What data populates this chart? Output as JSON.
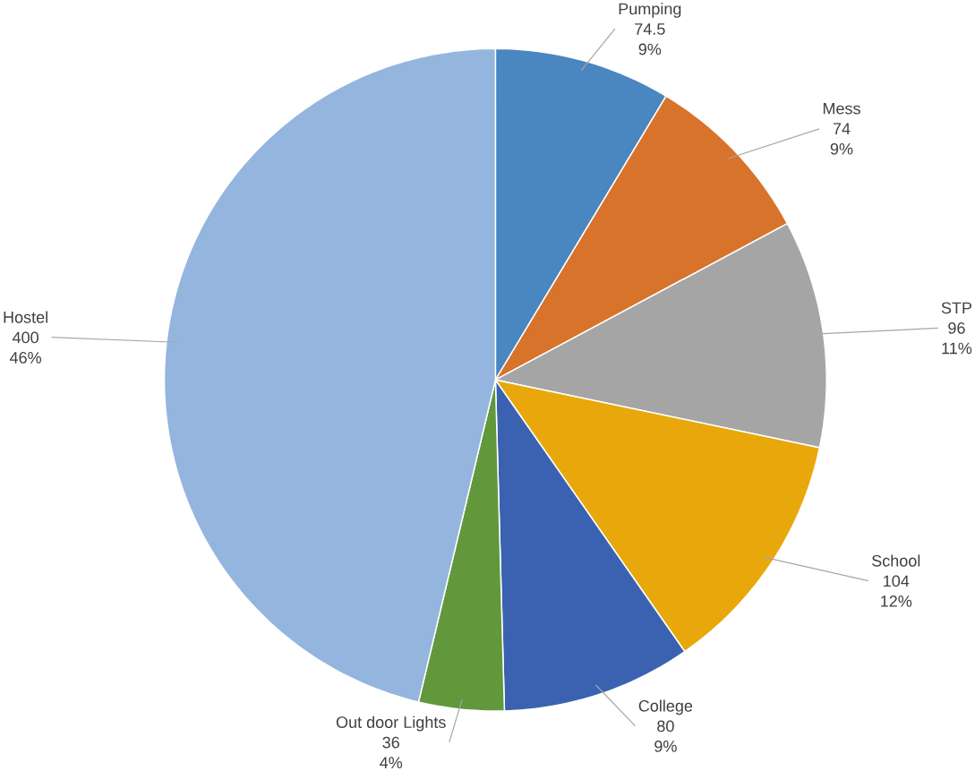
{
  "chart_data": {
    "type": "pie",
    "categories": [
      "Pumping",
      "Mess",
      "STP",
      "School",
      "College",
      "Out door Lights",
      "Hostel"
    ],
    "values": [
      74.5,
      74,
      96,
      104,
      80,
      36,
      400
    ],
    "colors": [
      "#4a86c0",
      "#d8732b",
      "#a5a5a5",
      "#e8a80c",
      "#3a62b0",
      "#62983c",
      "#94b5dd"
    ],
    "value_labels": [
      "74.5",
      "74",
      "96",
      "104",
      "80",
      "36",
      "400"
    ],
    "annotations": [
      "9%",
      "9%",
      "11%",
      "12%",
      "9%",
      "4%",
      "46%"
    ]
  }
}
